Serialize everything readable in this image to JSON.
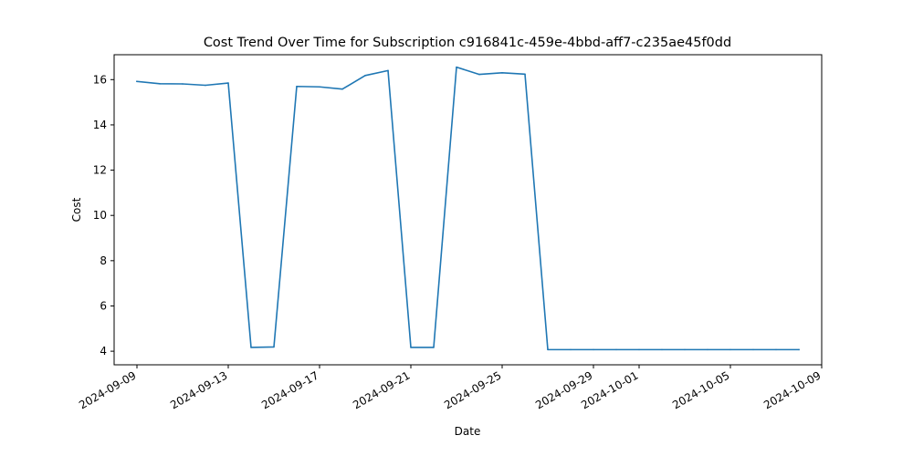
{
  "chart_data": {
    "type": "line",
    "title": "Cost Trend Over Time for Subscription c916841c-459e-4bbd-aff7-c235ae45f0dd",
    "xlabel": "Date",
    "ylabel": "Cost",
    "xlim": [
      "2024-09-08",
      "2024-10-09"
    ],
    "ylim": [
      3.4,
      17.1
    ],
    "grid": false,
    "x_ticks": [
      "2024-09-09",
      "2024-09-13",
      "2024-09-17",
      "2024-09-21",
      "2024-09-25",
      "2024-09-29",
      "2024-10-01",
      "2024-10-05",
      "2024-10-09"
    ],
    "y_ticks": [
      4,
      6,
      8,
      10,
      12,
      14,
      16
    ],
    "series": [
      {
        "color": "#1f77b4",
        "x": [
          "2024-09-09",
          "2024-09-10",
          "2024-09-11",
          "2024-09-12",
          "2024-09-13",
          "2024-09-14",
          "2024-09-15",
          "2024-09-16",
          "2024-09-17",
          "2024-09-18",
          "2024-09-19",
          "2024-09-20",
          "2024-09-21",
          "2024-09-22",
          "2024-09-23",
          "2024-09-24",
          "2024-09-25",
          "2024-09-26",
          "2024-09-27",
          "2024-09-28",
          "2024-09-29",
          "2024-09-30",
          "2024-10-01",
          "2024-10-02",
          "2024-10-03",
          "2024-10-04",
          "2024-10-05",
          "2024-10-06",
          "2024-10-07",
          "2024-10-08"
        ],
        "y": [
          15.92,
          15.82,
          15.81,
          15.75,
          15.85,
          4.17,
          4.19,
          15.7,
          15.68,
          15.58,
          16.18,
          16.4,
          4.17,
          4.17,
          16.55,
          16.23,
          16.3,
          16.24,
          4.07,
          4.07,
          4.07,
          4.07,
          4.07,
          4.07,
          4.07,
          4.07,
          4.07,
          4.07,
          4.07,
          4.07
        ]
      }
    ]
  }
}
